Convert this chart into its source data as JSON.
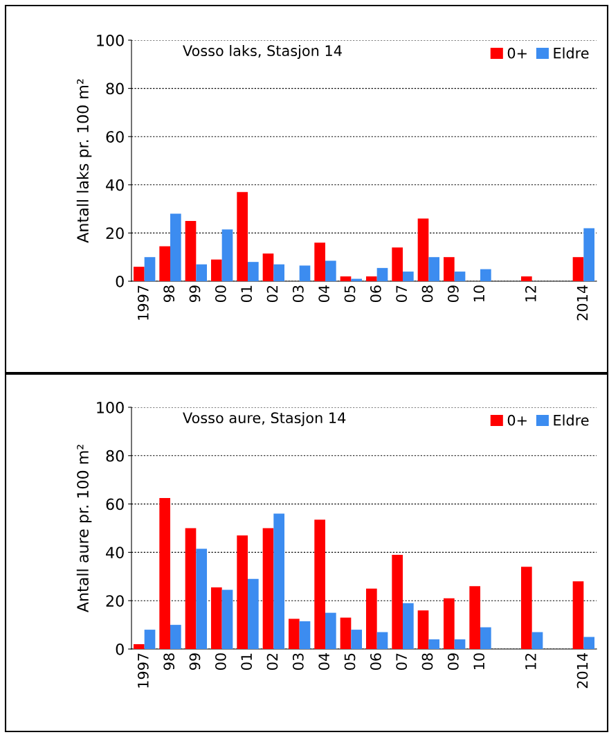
{
  "chart_data": [
    {
      "type": "bar",
      "title": "Vosso laks, Stasjon 14",
      "ylabel": "Antall laks pr. 100 m²",
      "categories": [
        "1997",
        "98",
        "99",
        "00",
        "01",
        "02",
        "03",
        "04",
        "05",
        "06",
        "07",
        "08",
        "09",
        "10",
        null,
        "12",
        null,
        "2014"
      ],
      "series": [
        {
          "name": "0+",
          "color": "#ff0000",
          "values": [
            6,
            14.5,
            25,
            9,
            37,
            11.5,
            0,
            16,
            2,
            2,
            14,
            26,
            10,
            0,
            null,
            2,
            null,
            10
          ]
        },
        {
          "name": "Eldre",
          "color": "#3c8cf0",
          "values": [
            10,
            28,
            7,
            21.5,
            8,
            7,
            6.5,
            8.5,
            1,
            5.5,
            4,
            10,
            4,
            5,
            null,
            0,
            null,
            22
          ]
        }
      ],
      "ylim": [
        0,
        100
      ],
      "yticks": [
        0,
        20,
        40,
        60,
        80,
        100
      ],
      "grid": "y",
      "legend": "top right"
    },
    {
      "type": "bar",
      "title": "Vosso aure, Stasjon 14",
      "ylabel": "Antall aure pr. 100 m²",
      "categories": [
        "1997",
        "98",
        "99",
        "00",
        "01",
        "02",
        "03",
        "04",
        "05",
        "06",
        "07",
        "08",
        "09",
        "10",
        null,
        "12",
        null,
        "2014"
      ],
      "series": [
        {
          "name": "0+",
          "color": "#ff0000",
          "values": [
            2,
            62.5,
            50,
            25.5,
            47,
            50,
            12.5,
            53.5,
            13,
            25,
            39,
            16,
            21,
            26,
            null,
            34,
            null,
            28
          ]
        },
        {
          "name": "Eldre",
          "color": "#3c8cf0",
          "values": [
            8,
            10,
            41.5,
            24.5,
            29,
            56,
            11.5,
            15,
            8,
            7,
            19,
            4,
            4,
            9,
            null,
            7,
            null,
            5
          ]
        }
      ],
      "ylim": [
        0,
        100
      ],
      "yticks": [
        0,
        20,
        40,
        60,
        80,
        100
      ],
      "grid": "y",
      "legend": "top right"
    }
  ]
}
